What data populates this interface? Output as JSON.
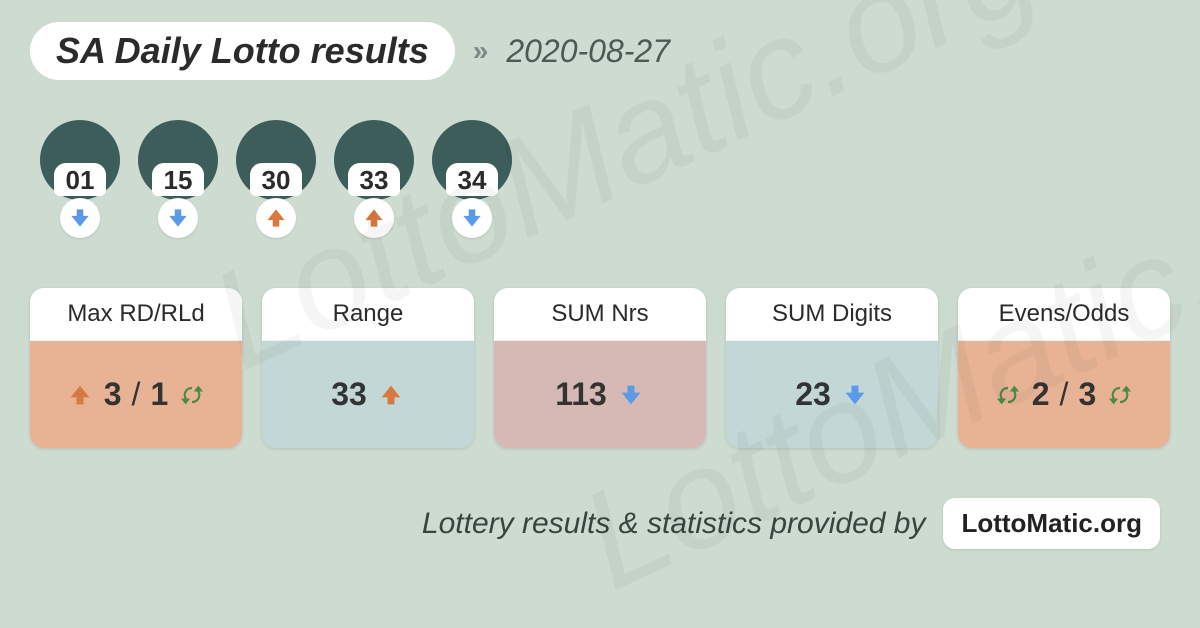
{
  "colors": {
    "background": "#cddbd1",
    "ball": "#3d5d5a",
    "arrow_down": "#5a9ae6",
    "arrow_up": "#d87a3f",
    "cycle": "#4a8a4a",
    "card_bodies": [
      "#e8b395",
      "#c3d8d6",
      "#d6b9b4",
      "#c3d8d6",
      "#e8b395"
    ]
  },
  "header": {
    "title": "SA Daily Lotto results",
    "date": "2020-08-27"
  },
  "balls": [
    {
      "num": "01",
      "trend": "down"
    },
    {
      "num": "15",
      "trend": "down"
    },
    {
      "num": "30",
      "trend": "up"
    },
    {
      "num": "33",
      "trend": "up"
    },
    {
      "num": "34",
      "trend": "down"
    }
  ],
  "cards": [
    {
      "label": "Max RD/RLd",
      "left_icon": "up",
      "left_val": "3",
      "sep": "/",
      "right_val": "1",
      "right_icon": "cycle"
    },
    {
      "label": "Range",
      "val": "33",
      "right_icon": "up"
    },
    {
      "label": "SUM Nrs",
      "val": "113",
      "right_icon": "down"
    },
    {
      "label": "SUM Digits",
      "val": "23",
      "right_icon": "down"
    },
    {
      "label": "Evens/Odds",
      "left_icon": "cycle",
      "left_val": "2",
      "sep": "/",
      "right_val": "3",
      "right_icon": "cycle"
    }
  ],
  "footer": {
    "text": "Lottery results & statistics provided by",
    "badge": "LottoMatic.org"
  },
  "watermark": "LottoMatic.org"
}
